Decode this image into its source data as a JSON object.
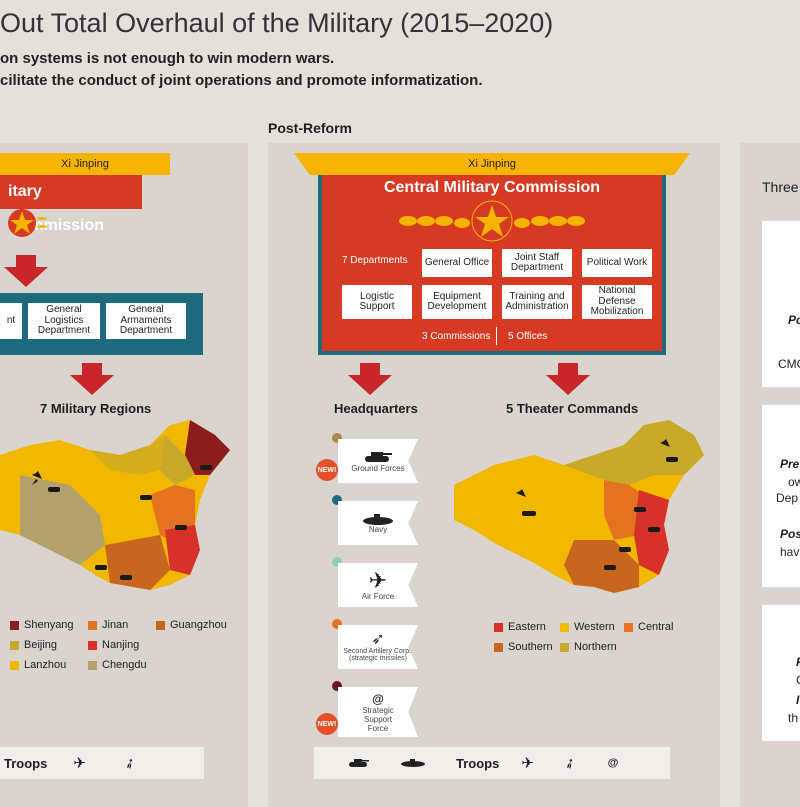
{
  "header": {
    "title": "Out Total Overhaul of the Military (2015–2020)",
    "subtitle1": "on systems is not enough to win modern wars.",
    "subtitle2": "cilitate the conduct of joint operations and promote informatization."
  },
  "left": {
    "leader": "Xi Jinping",
    "cmc_title": "itary Commission",
    "departments": [
      "nt",
      "General Logistics Department",
      "General Armaments Department"
    ],
    "regions_label": "7 Military Regions",
    "legend": [
      {
        "label": "Shenyang",
        "color": "#8b1d1d"
      },
      {
        "label": "Jinan",
        "color": "#e3731f"
      },
      {
        "label": "Guangzhou",
        "color": "#c8661f"
      },
      {
        "label": "Beijing",
        "color": "#c8a828"
      },
      {
        "label": "Nanjing",
        "color": "#d6322a"
      },
      {
        "label": "Lanzhou",
        "color": "#f2b800"
      },
      {
        "label": "Chengdu",
        "color": "#b3a06a"
      }
    ],
    "troops_label": "Troops"
  },
  "post_reform_label": "Post-Reform",
  "center": {
    "leader": "Xi Jinping",
    "cmc_title": "Central Military Commission",
    "seven_departments": "7 Departments",
    "boxes_row1": [
      "General Office",
      "Joint Staff Department",
      "Political Work"
    ],
    "boxes_row2": [
      "Logistic Support",
      "Equipment Development",
      "Training and Administration",
      "National Defense Mobilization"
    ],
    "commissions": "3 Commissions",
    "offices": "5 Offices",
    "hq_label": "Headquarters",
    "theater_label": "5 Theater Commands",
    "hq_items": [
      {
        "label": "Ground Forces",
        "dot": "#a88a4a",
        "new": true,
        "icon": "tank-icon"
      },
      {
        "label": "Navy",
        "dot": "#1e6b80",
        "new": false,
        "icon": "submarine-icon"
      },
      {
        "label": "Air Force",
        "dot": "#8fcfb0",
        "new": false,
        "icon": "jet-icon"
      },
      {
        "label": "Second Artillery Corps (strategic missiles)",
        "dot": "#e3731f",
        "new": false,
        "icon": "missile-icon"
      },
      {
        "label": "Strategic Support Force",
        "dot": "#6a1a1a",
        "new": true,
        "icon": "at-icon"
      }
    ],
    "new_badge": "NEW!",
    "theater_legend": [
      {
        "label": "Eastern",
        "color": "#d6322a"
      },
      {
        "label": "Western",
        "color": "#f2b800"
      },
      {
        "label": "Central",
        "color": "#e3731f"
      },
      {
        "label": "Southern",
        "color": "#c8661f"
      },
      {
        "label": "Northern",
        "color": "#c8a828"
      }
    ],
    "troops_label": "Troops",
    "at_symbol": "@"
  },
  "right": {
    "title": "Three",
    "card1_line1": "Po",
    "card1_line2": "CMC",
    "card2_line1": "Pre",
    "card2_line2": "ow",
    "card2_line3": "Dep",
    "card2_line4": "Pos",
    "card2_line5": "hav",
    "card3_line1": "F",
    "card3_line2": "C",
    "card3_line3": "I",
    "card3_line4": "th"
  }
}
